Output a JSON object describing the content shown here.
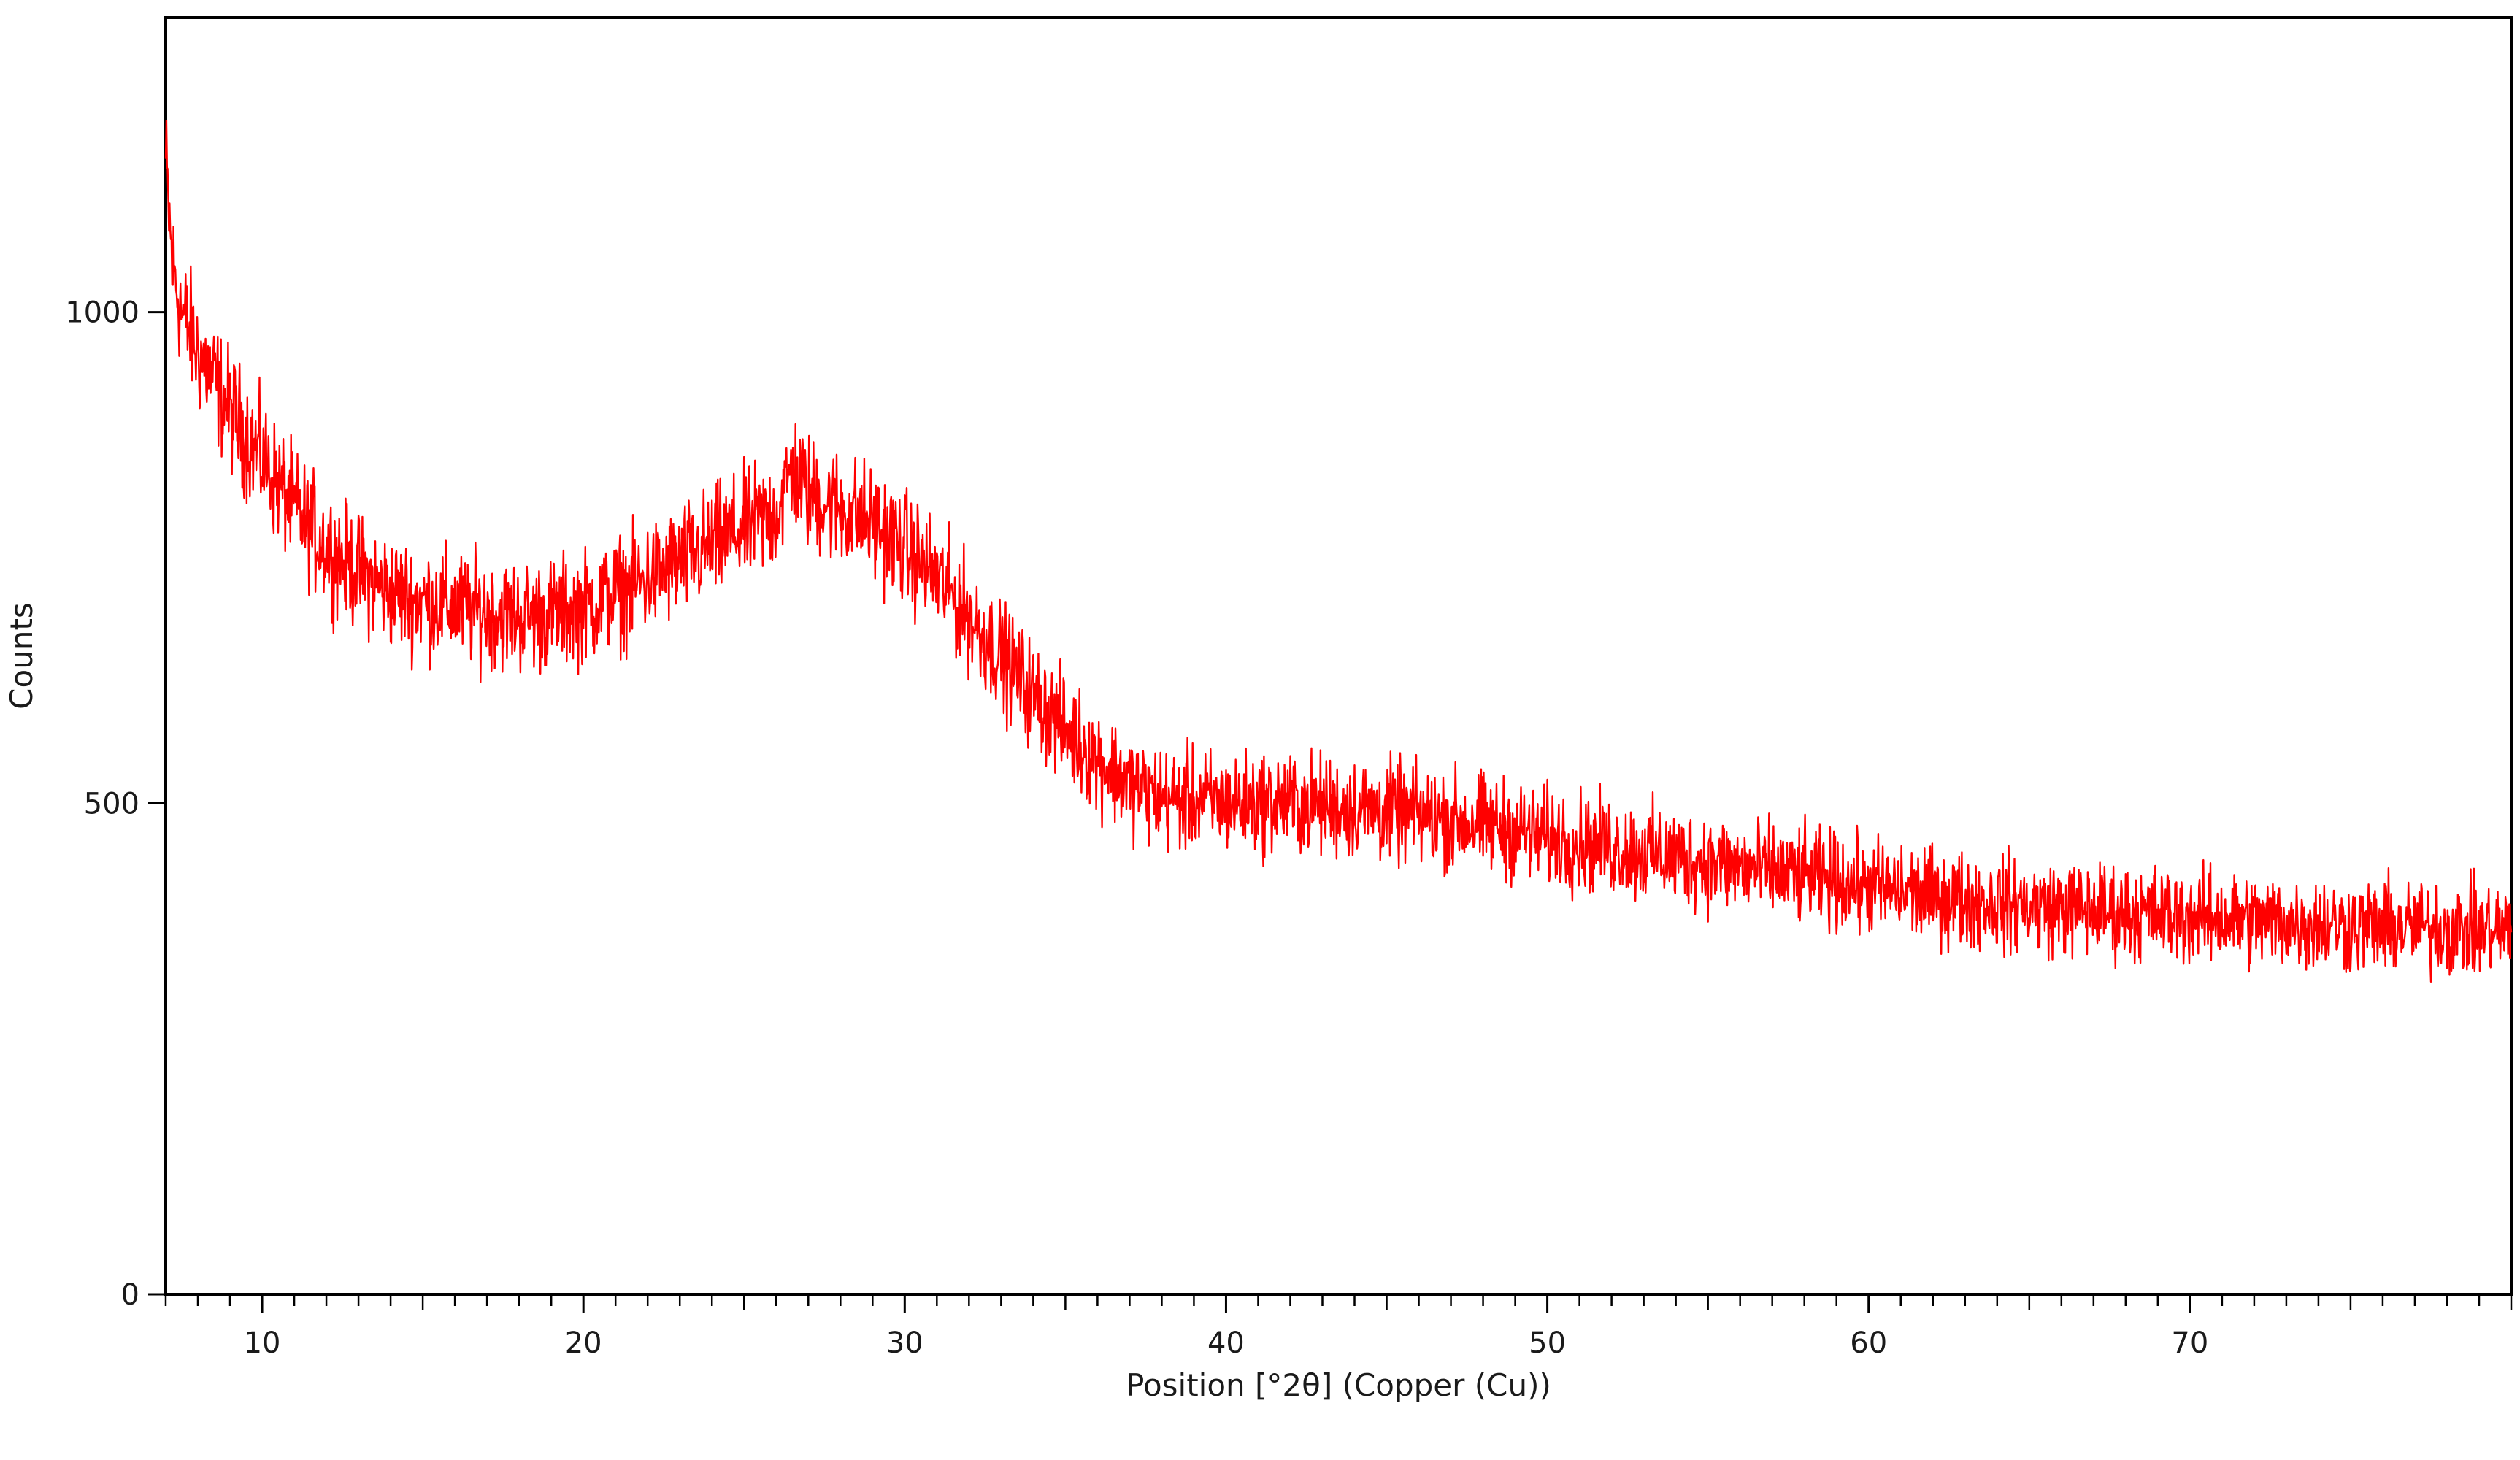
{
  "chart_data": {
    "type": "line",
    "xlabel": "Position [°2θ] (Copper (Cu))",
    "ylabel": "Counts",
    "xlim": [
      7,
      80
    ],
    "ylim": [
      0,
      1300
    ],
    "x_ticks": [
      10,
      20,
      30,
      40,
      50,
      60,
      70
    ],
    "x_minor_step": 1,
    "y_ticks": [
      0,
      500,
      1000
    ],
    "grid": false,
    "legend": "none",
    "colors": {
      "line": "#ff0000",
      "axis": "#000000"
    },
    "series": [
      {
        "x": [
          7,
          7.2,
          7.5,
          8,
          8.5,
          9,
          10,
          11,
          12,
          13,
          14,
          15,
          16,
          17,
          18,
          19,
          20,
          21,
          22,
          23,
          24,
          25,
          26,
          26.5,
          27,
          28,
          29,
          30,
          31,
          32,
          33,
          34,
          35,
          36,
          37,
          38,
          40,
          42,
          44,
          46,
          48,
          50,
          52,
          55,
          58,
          60,
          62,
          65,
          70,
          75,
          80
        ],
        "values": [
          1150,
          1050,
          1000,
          960,
          930,
          900,
          850,
          800,
          760,
          735,
          715,
          705,
          700,
          695,
          690,
          692,
          700,
          712,
          728,
          745,
          762,
          780,
          795,
          840,
          815,
          800,
          785,
          760,
          730,
          690,
          650,
          610,
          575,
          545,
          520,
          505,
          500,
          500,
          495,
          488,
          478,
          465,
          455,
          440,
          425,
          415,
          405,
          395,
          385,
          375,
          370
        ]
      }
    ],
    "noise_amplitude": 25
  }
}
